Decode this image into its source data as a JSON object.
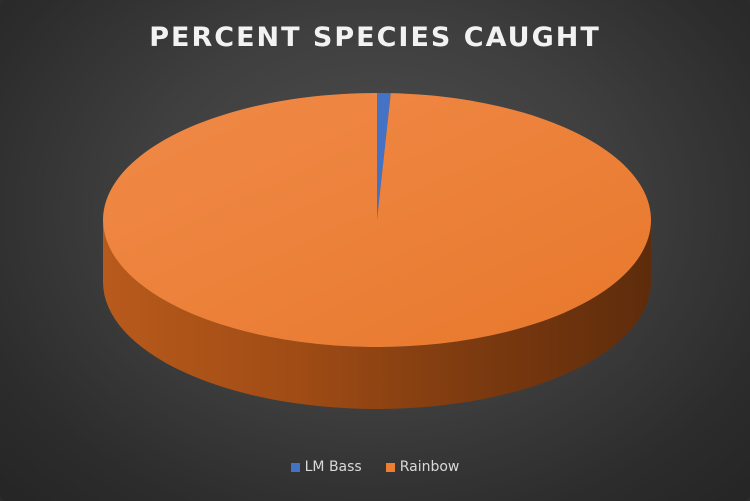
{
  "chart_data": {
    "type": "pie",
    "title": "PERCENT SPECIES CAUGHT",
    "categories": [
      "LM Bass",
      "Rainbow"
    ],
    "values": [
      0.8,
      99.2
    ],
    "colors": [
      "#4472c4",
      "#ed7d31"
    ],
    "legend_position": "bottom",
    "three_d": true
  }
}
